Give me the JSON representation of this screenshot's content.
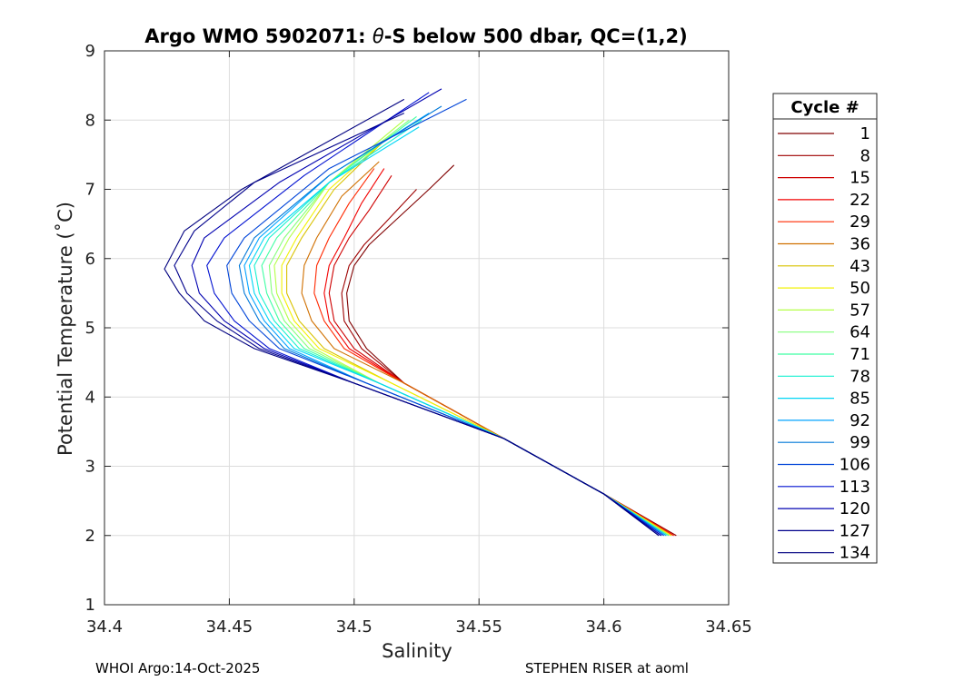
{
  "chart_data": {
    "type": "line",
    "title": "Argo WMO 5902071: θ-S below 500 dbar,  QC=(1,2)",
    "title_parts": {
      "prefix": "Argo WMO 5902071: ",
      "symbol": "θ",
      "suffix": "-S below 500 dbar,  QC=(1,2)"
    },
    "xlabel": "Salinity",
    "ylabel": "Potential Temperature (˚C)",
    "xlim": [
      34.4,
      34.65
    ],
    "ylim": [
      1,
      9
    ],
    "xticks": [
      34.4,
      34.45,
      34.5,
      34.55,
      34.6,
      34.65
    ],
    "xtick_labels": [
      "34.4",
      "34.45",
      "34.5",
      "34.55",
      "34.6",
      "34.65"
    ],
    "yticks": [
      1,
      2,
      3,
      4,
      5,
      6,
      7,
      8,
      9
    ],
    "ytick_labels": [
      "1",
      "2",
      "3",
      "4",
      "5",
      "6",
      "7",
      "8",
      "9"
    ],
    "grid": true,
    "legend": {
      "title": "Cycle #",
      "placement": "outside-right",
      "entries": [
        "1",
        "8",
        "15",
        "22",
        "29",
        "36",
        "43",
        "50",
        "57",
        "64",
        "71",
        "78",
        "85",
        "92",
        "99",
        "106",
        "113",
        "120",
        "127",
        "134"
      ],
      "colors": [
        "#800000",
        "#9e0000",
        "#ce0000",
        "#f20000",
        "#ff2800",
        "#d07000",
        "#d9c200",
        "#f2f200",
        "#b4ff48",
        "#84ff7b",
        "#3effa3",
        "#16f0d0",
        "#00d6f5",
        "#00a3ff",
        "#0078d8",
        "#0044d8",
        "#0010d0",
        "#0000b0",
        "#00008b",
        "#000080"
      ]
    },
    "series": [
      {
        "name": "1",
        "x": [
          34.629,
          34.6,
          34.56,
          34.52,
          34.505,
          34.498,
          34.497,
          34.5,
          34.506,
          34.515,
          34.53,
          34.54
        ],
        "y": [
          2.0,
          2.6,
          3.4,
          4.2,
          4.7,
          5.1,
          5.5,
          5.9,
          6.2,
          6.5,
          7.0,
          7.35
        ]
      },
      {
        "name": "8",
        "x": [
          34.629,
          34.6,
          34.56,
          34.52,
          34.503,
          34.496,
          34.495,
          34.498,
          34.504,
          34.512,
          34.525
        ],
        "y": [
          2.0,
          2.6,
          3.4,
          4.2,
          4.7,
          5.1,
          5.5,
          5.9,
          6.2,
          6.5,
          7.0
        ]
      },
      {
        "name": "15",
        "x": [
          34.628,
          34.6,
          34.56,
          34.52,
          34.5,
          34.492,
          34.49,
          34.492,
          34.498,
          34.506,
          34.515
        ],
        "y": [
          2.0,
          2.6,
          3.4,
          4.2,
          4.7,
          5.1,
          5.5,
          5.9,
          6.3,
          6.7,
          7.2
        ]
      },
      {
        "name": "22",
        "x": [
          34.628,
          34.6,
          34.56,
          34.52,
          34.498,
          34.49,
          34.488,
          34.49,
          34.496,
          34.503,
          34.512
        ],
        "y": [
          2.0,
          2.6,
          3.4,
          4.2,
          4.7,
          5.1,
          5.5,
          5.9,
          6.3,
          6.8,
          7.3
        ]
      },
      {
        "name": "29",
        "x": [
          34.628,
          34.6,
          34.56,
          34.52,
          34.496,
          34.488,
          34.484,
          34.485,
          34.49,
          34.498,
          34.508
        ],
        "y": [
          2.0,
          2.6,
          3.4,
          4.2,
          4.7,
          5.1,
          5.5,
          5.9,
          6.3,
          6.8,
          7.3
        ]
      },
      {
        "name": "36",
        "x": [
          34.627,
          34.6,
          34.56,
          34.52,
          34.492,
          34.483,
          34.479,
          34.48,
          34.485,
          34.495,
          34.51
        ],
        "y": [
          2.0,
          2.6,
          3.4,
          4.2,
          4.7,
          5.1,
          5.5,
          5.9,
          6.3,
          6.9,
          7.4
        ]
      },
      {
        "name": "43",
        "x": [
          34.627,
          34.6,
          34.56,
          34.515,
          34.488,
          34.478,
          34.473,
          34.473,
          34.479,
          34.492,
          34.512
        ],
        "y": [
          2.0,
          2.6,
          3.4,
          4.2,
          4.7,
          5.1,
          5.5,
          5.9,
          6.3,
          7.0,
          7.7
        ]
      },
      {
        "name": "50",
        "x": [
          34.627,
          34.6,
          34.56,
          34.515,
          34.486,
          34.476,
          34.471,
          34.471,
          34.477,
          34.49,
          34.515
        ],
        "y": [
          2.0,
          2.6,
          3.4,
          4.2,
          4.7,
          5.1,
          5.5,
          5.9,
          6.3,
          7.0,
          7.8
        ]
      },
      {
        "name": "57",
        "x": [
          34.626,
          34.6,
          34.56,
          34.51,
          34.484,
          34.474,
          34.469,
          34.468,
          34.474,
          34.49,
          34.52
        ],
        "y": [
          2.0,
          2.6,
          3.4,
          4.2,
          4.7,
          5.1,
          5.5,
          5.9,
          6.3,
          7.1,
          8.0
        ]
      },
      {
        "name": "64",
        "x": [
          34.626,
          34.6,
          34.56,
          34.51,
          34.482,
          34.472,
          34.467,
          34.466,
          34.472,
          34.49,
          34.522
        ],
        "y": [
          2.0,
          2.6,
          3.4,
          4.2,
          4.7,
          5.1,
          5.5,
          5.9,
          6.3,
          7.1,
          8.0
        ]
      },
      {
        "name": "71",
        "x": [
          34.626,
          34.6,
          34.56,
          34.51,
          34.48,
          34.47,
          34.465,
          34.463,
          34.469,
          34.49,
          34.525
        ],
        "y": [
          2.0,
          2.6,
          3.4,
          4.2,
          4.7,
          5.1,
          5.5,
          5.9,
          6.3,
          7.1,
          8.05
        ]
      },
      {
        "name": "78",
        "x": [
          34.625,
          34.6,
          34.56,
          34.51,
          34.478,
          34.468,
          34.462,
          34.46,
          34.466,
          34.49,
          34.527
        ],
        "y": [
          2.0,
          2.6,
          3.4,
          4.2,
          4.7,
          5.1,
          5.5,
          5.9,
          6.3,
          7.1,
          8.0
        ]
      },
      {
        "name": "85",
        "x": [
          34.625,
          34.6,
          34.56,
          34.51,
          34.476,
          34.466,
          34.46,
          34.458,
          34.464,
          34.49,
          34.526
        ],
        "y": [
          2.0,
          2.6,
          3.4,
          4.2,
          4.7,
          5.1,
          5.5,
          5.9,
          6.3,
          7.1,
          7.9
        ]
      },
      {
        "name": "92",
        "x": [
          34.625,
          34.6,
          34.56,
          34.505,
          34.474,
          34.464,
          34.458,
          34.456,
          34.462,
          34.49,
          34.53
        ],
        "y": [
          2.0,
          2.6,
          3.4,
          4.2,
          4.7,
          5.1,
          5.5,
          5.9,
          6.3,
          7.2,
          8.1
        ]
      },
      {
        "name": "99",
        "x": [
          34.624,
          34.6,
          34.56,
          34.505,
          34.472,
          34.462,
          34.456,
          34.454,
          34.46,
          34.49,
          34.535
        ],
        "y": [
          2.0,
          2.6,
          3.4,
          4.2,
          4.7,
          5.1,
          5.5,
          5.9,
          6.3,
          7.2,
          8.2
        ]
      },
      {
        "name": "106",
        "x": [
          34.624,
          34.6,
          34.56,
          34.505,
          34.47,
          34.458,
          34.451,
          34.449,
          34.456,
          34.49,
          34.545
        ],
        "y": [
          2.0,
          2.6,
          3.4,
          4.2,
          4.7,
          5.1,
          5.5,
          5.9,
          6.3,
          7.3,
          8.3
        ]
      },
      {
        "name": "113",
        "x": [
          34.623,
          34.6,
          34.56,
          34.5,
          34.466,
          34.452,
          34.444,
          34.441,
          34.448,
          34.48,
          34.53
        ],
        "y": [
          2.0,
          2.6,
          3.4,
          4.2,
          4.7,
          5.1,
          5.5,
          5.9,
          6.3,
          7.2,
          8.4
        ]
      },
      {
        "name": "120",
        "x": [
          34.623,
          34.6,
          34.56,
          34.5,
          34.464,
          34.448,
          34.438,
          34.435,
          34.44,
          34.47,
          34.535
        ],
        "y": [
          2.0,
          2.6,
          3.4,
          4.2,
          4.7,
          5.1,
          5.5,
          5.9,
          6.3,
          7.1,
          8.45
        ]
      },
      {
        "name": "127",
        "x": [
          34.622,
          34.6,
          34.56,
          34.5,
          34.462,
          34.445,
          34.433,
          34.428,
          34.436,
          34.46,
          34.52
        ],
        "y": [
          2.0,
          2.6,
          3.4,
          4.2,
          4.7,
          5.1,
          5.5,
          5.9,
          6.4,
          7.1,
          8.1
        ]
      },
      {
        "name": "134",
        "x": [
          34.622,
          34.6,
          34.56,
          34.5,
          34.46,
          34.44,
          34.43,
          34.424,
          34.432,
          34.455,
          34.52
        ],
        "y": [
          2.0,
          2.6,
          3.4,
          4.2,
          4.7,
          5.1,
          5.5,
          5.85,
          6.4,
          7.0,
          8.3
        ]
      }
    ]
  },
  "footer": {
    "left": "WHOI Argo:14-Oct-2025",
    "right": "STEPHEN RISER at aoml"
  }
}
